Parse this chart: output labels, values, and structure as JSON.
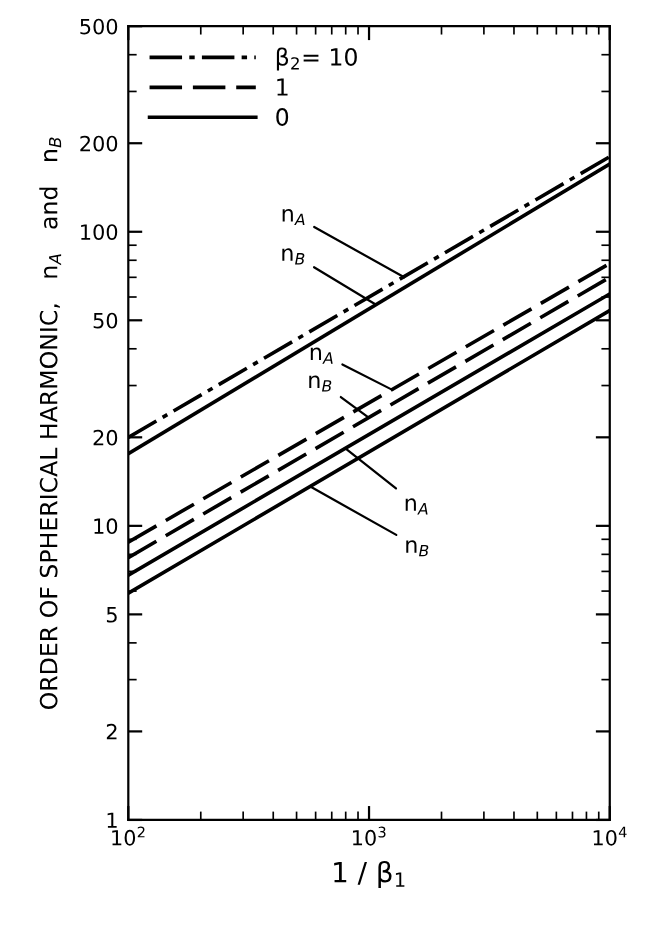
{
  "chart_data": {
    "type": "line",
    "xlabel": "1 / β$_{1}$",
    "ylabel": "ORDER OF SPHERICAL HARMONIC,   n$_{A}$   and   n$_{B}$",
    "log": "xy",
    "grid": false,
    "legend": "top left",
    "marker": "none",
    "xlim": [
      100,
      10000
    ],
    "xticks": [
      {
        "value": 100,
        "label": "10$^{2}$"
      },
      {
        "value": 1000,
        "label": "10$^{3}$"
      },
      {
        "value": 10000,
        "label": "10$^{4}$"
      }
    ],
    "ylim": [
      1,
      500
    ],
    "yticks": [
      1,
      2,
      5,
      10,
      20,
      50,
      100,
      200,
      500
    ],
    "x": [
      100,
      10000
    ],
    "series": [
      {
        "name": "β$_{2}$= 10",
        "color": "#000000",
        "line_style": "dashdot",
        "values": [
          20,
          180
        ]
      },
      {
        "color": "#000000",
        "line_style": "solid",
        "values": [
          17.6,
          170
        ]
      },
      {
        "name": "1",
        "color": "#000000",
        "line_style": "dashed",
        "values": [
          8.8,
          78
        ]
      },
      {
        "color": "#000000",
        "line_style": "dashed",
        "values": [
          7.8,
          70
        ]
      },
      {
        "name": "0",
        "color": "#000000",
        "line_style": "solid",
        "values": [
          6.8,
          61.5
        ]
      },
      {
        "color": "#000000",
        "line_style": "solid",
        "values": [
          5.9,
          54
        ]
      }
    ],
    "annotations": [
      {
        "text": "n$_{A}$",
        "x": 1400,
        "y": 70
      },
      {
        "text": "n$_{B}$",
        "x": 1070,
        "y": 56.5
      },
      {
        "text": "n$_{A}$",
        "x": 1250,
        "y": 29
      },
      {
        "text": "n$_{B}$",
        "x": 1000,
        "y": 23.3
      },
      {
        "text": "n$_{A}$",
        "x": 800,
        "y": 18.3
      },
      {
        "text": "n$_{B}$",
        "x": 570,
        "y": 13.6
      }
    ]
  }
}
